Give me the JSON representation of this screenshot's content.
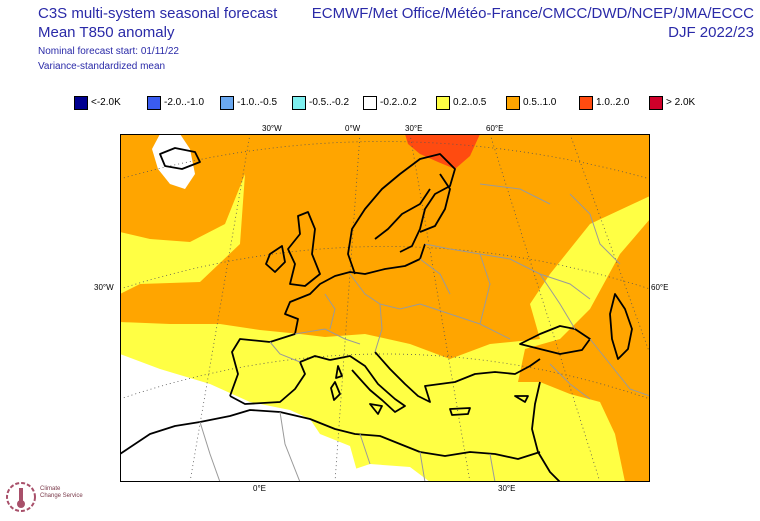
{
  "header": {
    "title_left_1": "C3S multi-system seasonal forecast",
    "title_left_2": "Mean T850 anomaly",
    "subtitle_1": "Nominal forecast start: 01/11/22",
    "subtitle_2": "Variance-standardized mean",
    "title_right_1": "ECMWF/Met Office/Météo-France/CMCC/DWD/NCEP/JMA/ECCC",
    "title_right_2": "DJF 2022/23"
  },
  "legend": [
    {
      "label": "<-2.0K",
      "color": "#000090"
    },
    {
      "label": "-2.0..-1.0",
      "color": "#3a5cf0"
    },
    {
      "label": "-1.0..-0.5",
      "color": "#6aa8f0"
    },
    {
      "label": "-0.5..-0.2",
      "color": "#7ef0f0"
    },
    {
      "label": "-0.2..0.2",
      "color": "#ffffff"
    },
    {
      "label": "0.2..0.5",
      "color": "#ffff44"
    },
    {
      "label": "0.5..1.0",
      "color": "#ffa500"
    },
    {
      "label": "1.0..2.0",
      "color": "#ff4b10"
    },
    {
      "label": "> 2.0K",
      "color": "#d0002a"
    }
  ],
  "axis_labels": {
    "top": [
      "30°W",
      "0°W",
      "30°E",
      "60°E"
    ],
    "bottom": [
      "0°E",
      "30°E"
    ],
    "left": "30°W",
    "right": "60°E"
  },
  "logo": {
    "line1": "Climate",
    "line2": "Change Service"
  }
}
